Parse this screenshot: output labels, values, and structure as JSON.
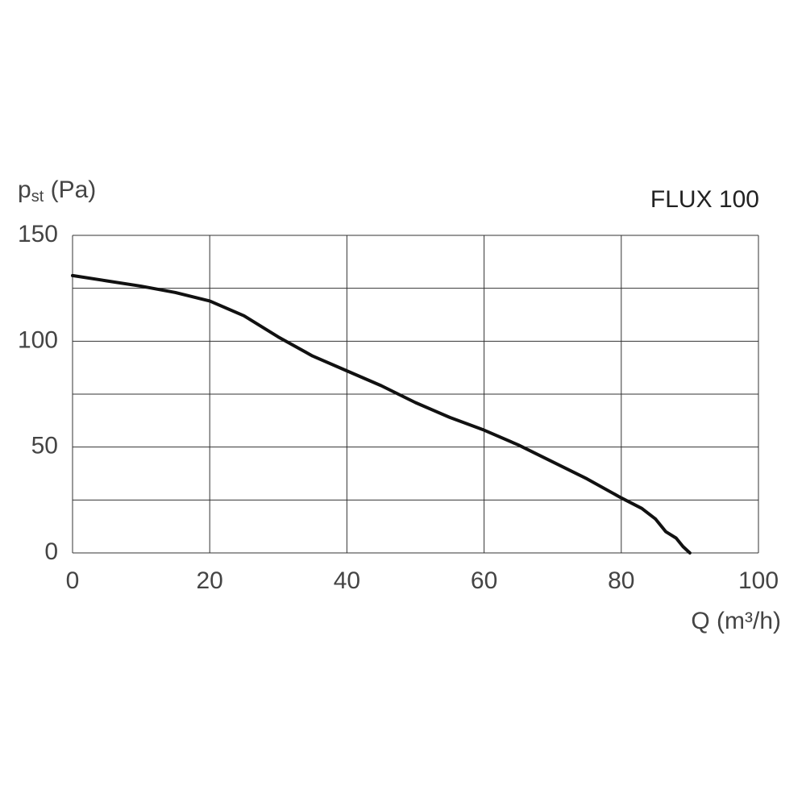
{
  "chart_data": {
    "type": "line",
    "title": "FLUX 100",
    "ylabel_parts": [
      "p",
      "st",
      " (Pa)"
    ],
    "xlabel": "Q (m³/h)",
    "x": [
      0,
      5,
      10,
      15,
      20,
      25,
      30,
      35,
      40,
      45,
      50,
      55,
      60,
      65,
      70,
      75,
      80,
      83,
      85,
      86.5,
      88,
      89,
      90
    ],
    "series": [
      {
        "color": "#111111",
        "values": [
          131,
          128.5,
          126,
          123,
          119,
          112,
          102,
          93,
          86,
          79,
          71,
          64,
          58,
          51,
          43,
          35,
          26,
          21,
          16,
          10,
          7,
          3,
          0
        ]
      }
    ],
    "xlim": [
      0,
      100
    ],
    "xticks": [
      0,
      20,
      40,
      60,
      80,
      100
    ],
    "ylim": [
      0,
      150
    ],
    "yticks": [
      0,
      50,
      100,
      150
    ],
    "ygrid": [
      0,
      25,
      50,
      75,
      100,
      125,
      150
    ],
    "grid": true
  }
}
